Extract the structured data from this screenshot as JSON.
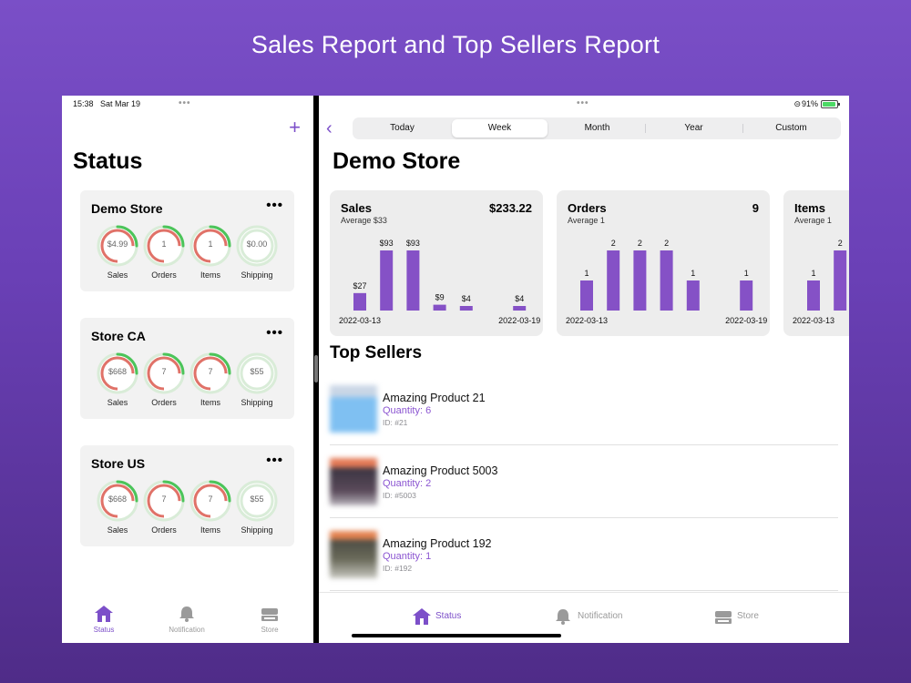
{
  "headline": "Sales Report and Top Sellers Report",
  "left": {
    "status_bar": {
      "time": "15:38",
      "date": "Sat Mar 19",
      "dots": "•••"
    },
    "add_label": "+",
    "title": "Status",
    "stores": [
      {
        "name": "Demo Store",
        "more": "•••",
        "metrics": [
          {
            "value": "$4.99",
            "label": "Sales",
            "progress": 0.25
          },
          {
            "value": "1",
            "label": "Orders",
            "progress": 0.25
          },
          {
            "value": "1",
            "label": "Items",
            "progress": 0.25
          },
          {
            "value": "$0.00",
            "label": "Shipping",
            "progress": 0
          }
        ]
      },
      {
        "name": "Store CA",
        "more": "•••",
        "metrics": [
          {
            "value": "$668",
            "label": "Sales",
            "progress": 0.25
          },
          {
            "value": "7",
            "label": "Orders",
            "progress": 0.25
          },
          {
            "value": "7",
            "label": "Items",
            "progress": 0.25
          },
          {
            "value": "$55",
            "label": "Shipping",
            "progress": 0
          }
        ]
      },
      {
        "name": "Store US",
        "more": "•••",
        "metrics": [
          {
            "value": "$668",
            "label": "Sales",
            "progress": 0.25
          },
          {
            "value": "7",
            "label": "Orders",
            "progress": 0.25
          },
          {
            "value": "7",
            "label": "Items",
            "progress": 0.25
          },
          {
            "value": "$55",
            "label": "Shipping",
            "progress": 0
          }
        ]
      }
    ],
    "tabs": [
      {
        "label": "Status",
        "icon": "house-icon",
        "active": true
      },
      {
        "label": "Notification",
        "icon": "bell-icon",
        "active": false
      },
      {
        "label": "Store",
        "icon": "store-icon",
        "active": false
      }
    ]
  },
  "right": {
    "status_bar": {
      "dots": "•••",
      "link": "⊝",
      "battery": "91%"
    },
    "back_label": "‹",
    "periods": [
      "Today",
      "Week",
      "Month",
      "Year",
      "Custom"
    ],
    "selected_period": "Week",
    "title": "Demo Store",
    "cards": [
      {
        "title": "Sales",
        "total": "$233.22",
        "average": "Average  $33"
      },
      {
        "title": "Orders",
        "total": "9",
        "average": "Average  1"
      },
      {
        "title": "Items",
        "total": "",
        "average": "Average  1"
      }
    ],
    "top_sellers_title": "Top Sellers",
    "sellers": [
      {
        "name": "Amazing Product 21",
        "quantity": "Quantity: 6",
        "id": "ID: #21"
      },
      {
        "name": "Amazing Product 5003",
        "quantity": "Quantity: 2",
        "id": "ID: #5003"
      },
      {
        "name": "Amazing Product 192",
        "quantity": "Quantity: 1",
        "id": "ID: #192"
      }
    ],
    "tabs": [
      {
        "label": "Status",
        "icon": "house-icon",
        "active": true
      },
      {
        "label": "Notification",
        "icon": "bell-icon",
        "active": false
      },
      {
        "label": "Store",
        "icon": "store-icon",
        "active": false
      }
    ]
  },
  "colors": {
    "accent": "#7c4fc9",
    "bar": "#8551c6",
    "gauge_red": "#e07268",
    "gauge_green": "#4cc45a",
    "gauge_track": "#d9ecd8"
  },
  "chart_data": [
    {
      "type": "bar",
      "title": "Sales",
      "categories": [
        "2022-03-13",
        "2022-03-14",
        "2022-03-15",
        "2022-03-16",
        "2022-03-17",
        "2022-03-18",
        "2022-03-19"
      ],
      "values": [
        27,
        93,
        93,
        9,
        4,
        0,
        4
      ],
      "data_labels": [
        "$27",
        "$93",
        "$93",
        "$9",
        "$4",
        "",
        "$4"
      ],
      "x_tick_labels": [
        "2022-03-13",
        "2022-03-19"
      ],
      "ylim": [
        0,
        93
      ]
    },
    {
      "type": "bar",
      "title": "Orders",
      "categories": [
        "2022-03-13",
        "2022-03-14",
        "2022-03-15",
        "2022-03-16",
        "2022-03-17",
        "2022-03-18",
        "2022-03-19"
      ],
      "values": [
        1,
        2,
        2,
        2,
        1,
        0,
        1
      ],
      "data_labels": [
        "1",
        "2",
        "2",
        "2",
        "1",
        "",
        "1"
      ],
      "x_tick_labels": [
        "2022-03-13",
        "2022-03-19"
      ],
      "ylim": [
        0,
        2
      ]
    },
    {
      "type": "bar",
      "title": "Items",
      "categories": [
        "2022-03-13",
        "2022-03-14"
      ],
      "values": [
        1,
        2
      ],
      "data_labels": [
        "1",
        "2"
      ],
      "x_tick_labels": [
        "2022-03-13"
      ],
      "ylim": [
        0,
        2
      ]
    }
  ]
}
